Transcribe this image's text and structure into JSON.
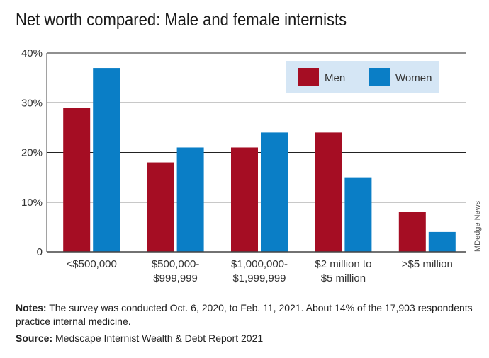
{
  "chart_data": {
    "type": "bar",
    "title": "Net worth compared: Male and female internists",
    "categories": [
      [
        "<$500,000"
      ],
      [
        "$500,000-",
        "$999,999"
      ],
      [
        "$1,000,000-",
        "$1,999,999"
      ],
      [
        "$2 million to",
        "$5 million"
      ],
      [
        ">$5 million"
      ]
    ],
    "series": [
      {
        "name": "Men",
        "values": [
          29,
          18,
          21,
          24,
          8
        ],
        "color": "#a50d23"
      },
      {
        "name": "Women",
        "values": [
          37,
          21,
          24,
          15,
          4
        ],
        "color": "#0a7ec6"
      }
    ],
    "yticks": [
      {
        "value": 0,
        "label": "0"
      },
      {
        "value": 10,
        "label": "10%"
      },
      {
        "value": 20,
        "label": "20%"
      },
      {
        "value": 30,
        "label": "30%"
      },
      {
        "value": 40,
        "label": "40%"
      }
    ],
    "ylim": [
      0,
      40
    ],
    "grid": true,
    "legend_position": "top-right",
    "legend_bg": "#d5e6f5"
  },
  "watermark": "MDedge News",
  "notes": {
    "label": "Notes:",
    "text": " The survey was conducted Oct. 6, 2020, to Feb. 11, 2021. About 14% of the 17,903 respondents practice internal medicine."
  },
  "source": {
    "label": "Source:",
    "text": " Medscape Internist Wealth & Debt Report 2021"
  }
}
